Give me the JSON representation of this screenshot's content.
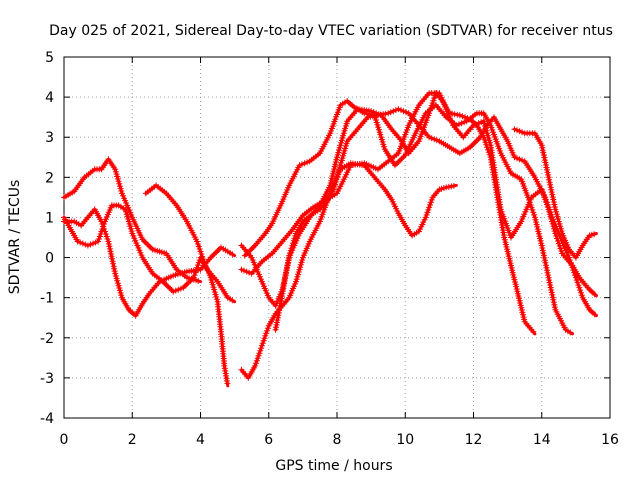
{
  "chart_data": {
    "type": "scatter",
    "title": "Day 025 of 2021, Sidereal Day-to-day VTEC variation (SDTVAR) for receiver ntus",
    "xlabel": "GPS time / hours",
    "ylabel": "SDTVAR / TECUs",
    "xlim": [
      0,
      16
    ],
    "ylim": [
      -4,
      5
    ],
    "xticks": [
      "0",
      "2",
      "4",
      "6",
      "8",
      "10",
      "12",
      "14",
      "16"
    ],
    "yticks": [
      "-4",
      "-3",
      "-2",
      "-1",
      "0",
      "1",
      "2",
      "3",
      "4",
      "5"
    ],
    "grid": true,
    "legend": "none",
    "marker_color": "#ff0000",
    "series": [
      {
        "points": [
          [
            0.0,
            1.5
          ],
          [
            0.3,
            1.65
          ],
          [
            0.6,
            2.0
          ],
          [
            0.9,
            2.2
          ],
          [
            1.1,
            2.2
          ],
          [
            1.3,
            2.45
          ],
          [
            1.5,
            2.2
          ],
          [
            1.7,
            1.6
          ],
          [
            2.0,
            1.0
          ],
          [
            2.3,
            0.45
          ],
          [
            2.6,
            0.2
          ],
          [
            3.0,
            0.1
          ],
          [
            3.3,
            -0.3
          ],
          [
            3.6,
            -0.5
          ],
          [
            4.0,
            -0.6
          ]
        ]
      },
      {
        "points": [
          [
            0.0,
            0.9
          ],
          [
            0.3,
            0.9
          ],
          [
            0.5,
            0.8
          ],
          [
            0.7,
            1.0
          ],
          [
            0.9,
            1.2
          ],
          [
            1.1,
            0.9
          ],
          [
            1.3,
            0.4
          ],
          [
            1.5,
            -0.4
          ],
          [
            1.7,
            -1.0
          ],
          [
            1.9,
            -1.3
          ],
          [
            2.1,
            -1.45
          ],
          [
            2.3,
            -1.15
          ],
          [
            2.5,
            -0.9
          ],
          [
            2.8,
            -0.6
          ],
          [
            3.2,
            -0.45
          ],
          [
            3.6,
            -0.35
          ],
          [
            4.0,
            -0.3
          ],
          [
            4.3,
            0.0
          ],
          [
            4.6,
            0.25
          ],
          [
            5.0,
            0.05
          ]
        ]
      },
      {
        "points": [
          [
            0.0,
            1.0
          ],
          [
            0.2,
            0.7
          ],
          [
            0.4,
            0.4
          ],
          [
            0.7,
            0.3
          ],
          [
            1.0,
            0.4
          ],
          [
            1.2,
            0.9
          ],
          [
            1.4,
            1.3
          ],
          [
            1.6,
            1.3
          ],
          [
            1.8,
            1.2
          ],
          [
            2.0,
            0.6
          ],
          [
            2.3,
            0.0
          ],
          [
            2.6,
            -0.4
          ],
          [
            2.9,
            -0.6
          ],
          [
            3.2,
            -0.85
          ],
          [
            3.5,
            -0.75
          ],
          [
            3.8,
            -0.5
          ],
          [
            4.0,
            0.0
          ],
          [
            4.2,
            -0.3
          ],
          [
            4.5,
            -0.6
          ],
          [
            4.8,
            -1.0
          ],
          [
            5.0,
            -1.1
          ]
        ]
      },
      {
        "points": [
          [
            2.4,
            1.6
          ],
          [
            2.7,
            1.8
          ],
          [
            3.0,
            1.6
          ],
          [
            3.3,
            1.3
          ],
          [
            3.6,
            0.9
          ],
          [
            3.9,
            0.4
          ],
          [
            4.1,
            -0.1
          ],
          [
            4.3,
            -0.5
          ],
          [
            4.5,
            -1.1
          ],
          [
            4.6,
            -1.85
          ],
          [
            4.7,
            -2.7
          ],
          [
            4.8,
            -3.2
          ]
        ]
      },
      {
        "points": [
          [
            5.2,
            -2.8
          ],
          [
            5.4,
            -3.0
          ],
          [
            5.6,
            -2.7
          ],
          [
            5.8,
            -2.2
          ],
          [
            6.0,
            -1.7
          ],
          [
            6.2,
            -1.4
          ],
          [
            6.4,
            -1.2
          ],
          [
            6.6,
            -1.0
          ],
          [
            6.8,
            -0.6
          ],
          [
            7.0,
            0.0
          ],
          [
            7.2,
            0.4
          ],
          [
            7.5,
            0.9
          ],
          [
            7.8,
            1.6
          ],
          [
            8.1,
            2.2
          ],
          [
            8.4,
            2.35
          ],
          [
            8.8,
            2.3
          ],
          [
            9.1,
            2.0
          ],
          [
            9.4,
            1.7
          ],
          [
            9.6,
            1.45
          ],
          [
            9.8,
            1.1
          ],
          [
            10.0,
            0.8
          ],
          [
            10.2,
            0.55
          ],
          [
            10.4,
            0.65
          ],
          [
            10.6,
            1.0
          ],
          [
            10.8,
            1.5
          ],
          [
            11.0,
            1.7
          ],
          [
            11.2,
            1.75
          ],
          [
            11.5,
            1.8
          ]
        ]
      },
      {
        "points": [
          [
            5.2,
            0.3
          ],
          [
            5.5,
            0.0
          ],
          [
            5.8,
            -0.6
          ],
          [
            6.0,
            -1.0
          ],
          [
            6.2,
            -1.2
          ],
          [
            6.4,
            -0.8
          ],
          [
            6.6,
            0.0
          ],
          [
            6.9,
            0.6
          ],
          [
            7.2,
            1.0
          ],
          [
            7.5,
            1.3
          ],
          [
            7.8,
            1.8
          ],
          [
            8.0,
            2.5
          ],
          [
            8.3,
            3.4
          ],
          [
            8.6,
            3.7
          ],
          [
            9.0,
            3.65
          ],
          [
            9.3,
            3.55
          ],
          [
            9.6,
            3.2
          ],
          [
            9.9,
            2.9
          ],
          [
            10.1,
            2.6
          ],
          [
            10.4,
            2.9
          ],
          [
            10.7,
            3.6
          ],
          [
            10.9,
            4.1
          ],
          [
            11.1,
            3.9
          ],
          [
            11.3,
            3.6
          ],
          [
            11.6,
            3.55
          ],
          [
            11.9,
            3.45
          ],
          [
            12.1,
            3.3
          ],
          [
            12.3,
            3.0
          ],
          [
            12.5,
            2.5
          ],
          [
            12.7,
            1.5
          ],
          [
            12.9,
            0.5
          ],
          [
            13.1,
            -0.2
          ],
          [
            13.3,
            -0.9
          ],
          [
            13.5,
            -1.6
          ],
          [
            13.8,
            -1.9
          ]
        ]
      },
      {
        "points": [
          [
            5.3,
            0.05
          ],
          [
            5.6,
            0.3
          ],
          [
            5.9,
            0.6
          ],
          [
            6.1,
            0.85
          ],
          [
            6.4,
            1.4
          ],
          [
            6.6,
            1.8
          ],
          [
            6.9,
            2.3
          ],
          [
            7.2,
            2.4
          ],
          [
            7.5,
            2.6
          ],
          [
            7.8,
            3.1
          ],
          [
            8.1,
            3.8
          ],
          [
            8.3,
            3.9
          ],
          [
            8.5,
            3.75
          ],
          [
            8.8,
            3.6
          ],
          [
            9.1,
            3.55
          ],
          [
            9.4,
            2.7
          ],
          [
            9.7,
            2.3
          ],
          [
            10.0,
            2.55
          ],
          [
            10.3,
            3.1
          ],
          [
            10.6,
            3.6
          ],
          [
            10.9,
            3.8
          ],
          [
            11.2,
            3.5
          ],
          [
            11.5,
            3.3
          ],
          [
            11.8,
            3.4
          ],
          [
            12.1,
            3.6
          ],
          [
            12.3,
            3.6
          ],
          [
            12.5,
            3.3
          ],
          [
            12.8,
            2.6
          ],
          [
            13.1,
            2.1
          ],
          [
            13.4,
            1.95
          ],
          [
            13.6,
            1.5
          ],
          [
            13.8,
            1.0
          ],
          [
            14.0,
            0.3
          ],
          [
            14.2,
            -0.5
          ],
          [
            14.4,
            -1.3
          ],
          [
            14.7,
            -1.8
          ],
          [
            14.9,
            -1.9
          ]
        ]
      },
      {
        "points": [
          [
            5.2,
            -0.3
          ],
          [
            5.5,
            -0.4
          ],
          [
            5.8,
            -0.1
          ],
          [
            6.1,
            0.1
          ],
          [
            6.4,
            0.4
          ],
          [
            6.7,
            0.7
          ],
          [
            7.0,
            1.05
          ],
          [
            7.3,
            1.25
          ],
          [
            7.6,
            1.4
          ],
          [
            8.0,
            1.6
          ],
          [
            8.4,
            2.3
          ],
          [
            8.8,
            2.35
          ],
          [
            9.2,
            2.2
          ],
          [
            9.5,
            2.4
          ],
          [
            9.8,
            2.6
          ],
          [
            10.1,
            3.3
          ],
          [
            10.4,
            3.8
          ],
          [
            10.7,
            4.1
          ],
          [
            11.0,
            4.1
          ],
          [
            11.2,
            3.7
          ],
          [
            11.4,
            3.3
          ],
          [
            11.7,
            3.0
          ],
          [
            12.0,
            3.3
          ],
          [
            12.3,
            3.4
          ],
          [
            12.5,
            2.8
          ],
          [
            12.8,
            1.2
          ],
          [
            13.1,
            0.5
          ],
          [
            13.4,
            0.9
          ],
          [
            13.7,
            1.5
          ],
          [
            14.0,
            1.7
          ],
          [
            14.2,
            1.2
          ],
          [
            14.4,
            0.6
          ],
          [
            14.6,
            0.1
          ],
          [
            14.9,
            -0.2
          ],
          [
            15.1,
            -0.5
          ],
          [
            15.4,
            -0.8
          ],
          [
            15.6,
            -0.95
          ]
        ]
      },
      {
        "points": [
          [
            6.2,
            -1.8
          ],
          [
            6.4,
            -0.9
          ],
          [
            6.6,
            0.05
          ],
          [
            6.8,
            0.6
          ],
          [
            7.0,
            0.9
          ],
          [
            7.3,
            1.1
          ],
          [
            7.5,
            1.2
          ],
          [
            7.7,
            1.4
          ],
          [
            7.9,
            1.7
          ],
          [
            8.1,
            2.3
          ],
          [
            8.3,
            2.9
          ],
          [
            8.6,
            3.2
          ],
          [
            8.9,
            3.5
          ],
          [
            9.2,
            3.55
          ],
          [
            9.5,
            3.6
          ],
          [
            9.8,
            3.7
          ],
          [
            10.1,
            3.6
          ],
          [
            10.4,
            3.3
          ],
          [
            10.7,
            3.0
          ],
          [
            11.0,
            2.9
          ],
          [
            11.3,
            2.75
          ],
          [
            11.6,
            2.6
          ],
          [
            11.9,
            2.75
          ],
          [
            12.2,
            3.0
          ],
          [
            12.4,
            3.3
          ],
          [
            12.6,
            3.5
          ],
          [
            12.8,
            3.2
          ],
          [
            13.0,
            2.9
          ],
          [
            13.2,
            2.5
          ],
          [
            13.5,
            2.4
          ],
          [
            13.8,
            2.0
          ],
          [
            14.1,
            1.5
          ],
          [
            14.3,
            1.0
          ],
          [
            14.5,
            0.6
          ],
          [
            14.8,
            0.0
          ],
          [
            15.0,
            -0.5
          ],
          [
            15.2,
            -1.0
          ],
          [
            15.4,
            -1.3
          ],
          [
            15.6,
            -1.45
          ]
        ]
      },
      {
        "points": [
          [
            13.2,
            3.2
          ],
          [
            13.5,
            3.1
          ],
          [
            13.8,
            3.1
          ],
          [
            14.0,
            2.8
          ],
          [
            14.2,
            2.0
          ],
          [
            14.4,
            1.2
          ],
          [
            14.6,
            0.6
          ],
          [
            14.8,
            0.2
          ],
          [
            15.0,
            0.0
          ],
          [
            15.2,
            0.3
          ],
          [
            15.4,
            0.55
          ],
          [
            15.6,
            0.6
          ]
        ]
      }
    ]
  }
}
